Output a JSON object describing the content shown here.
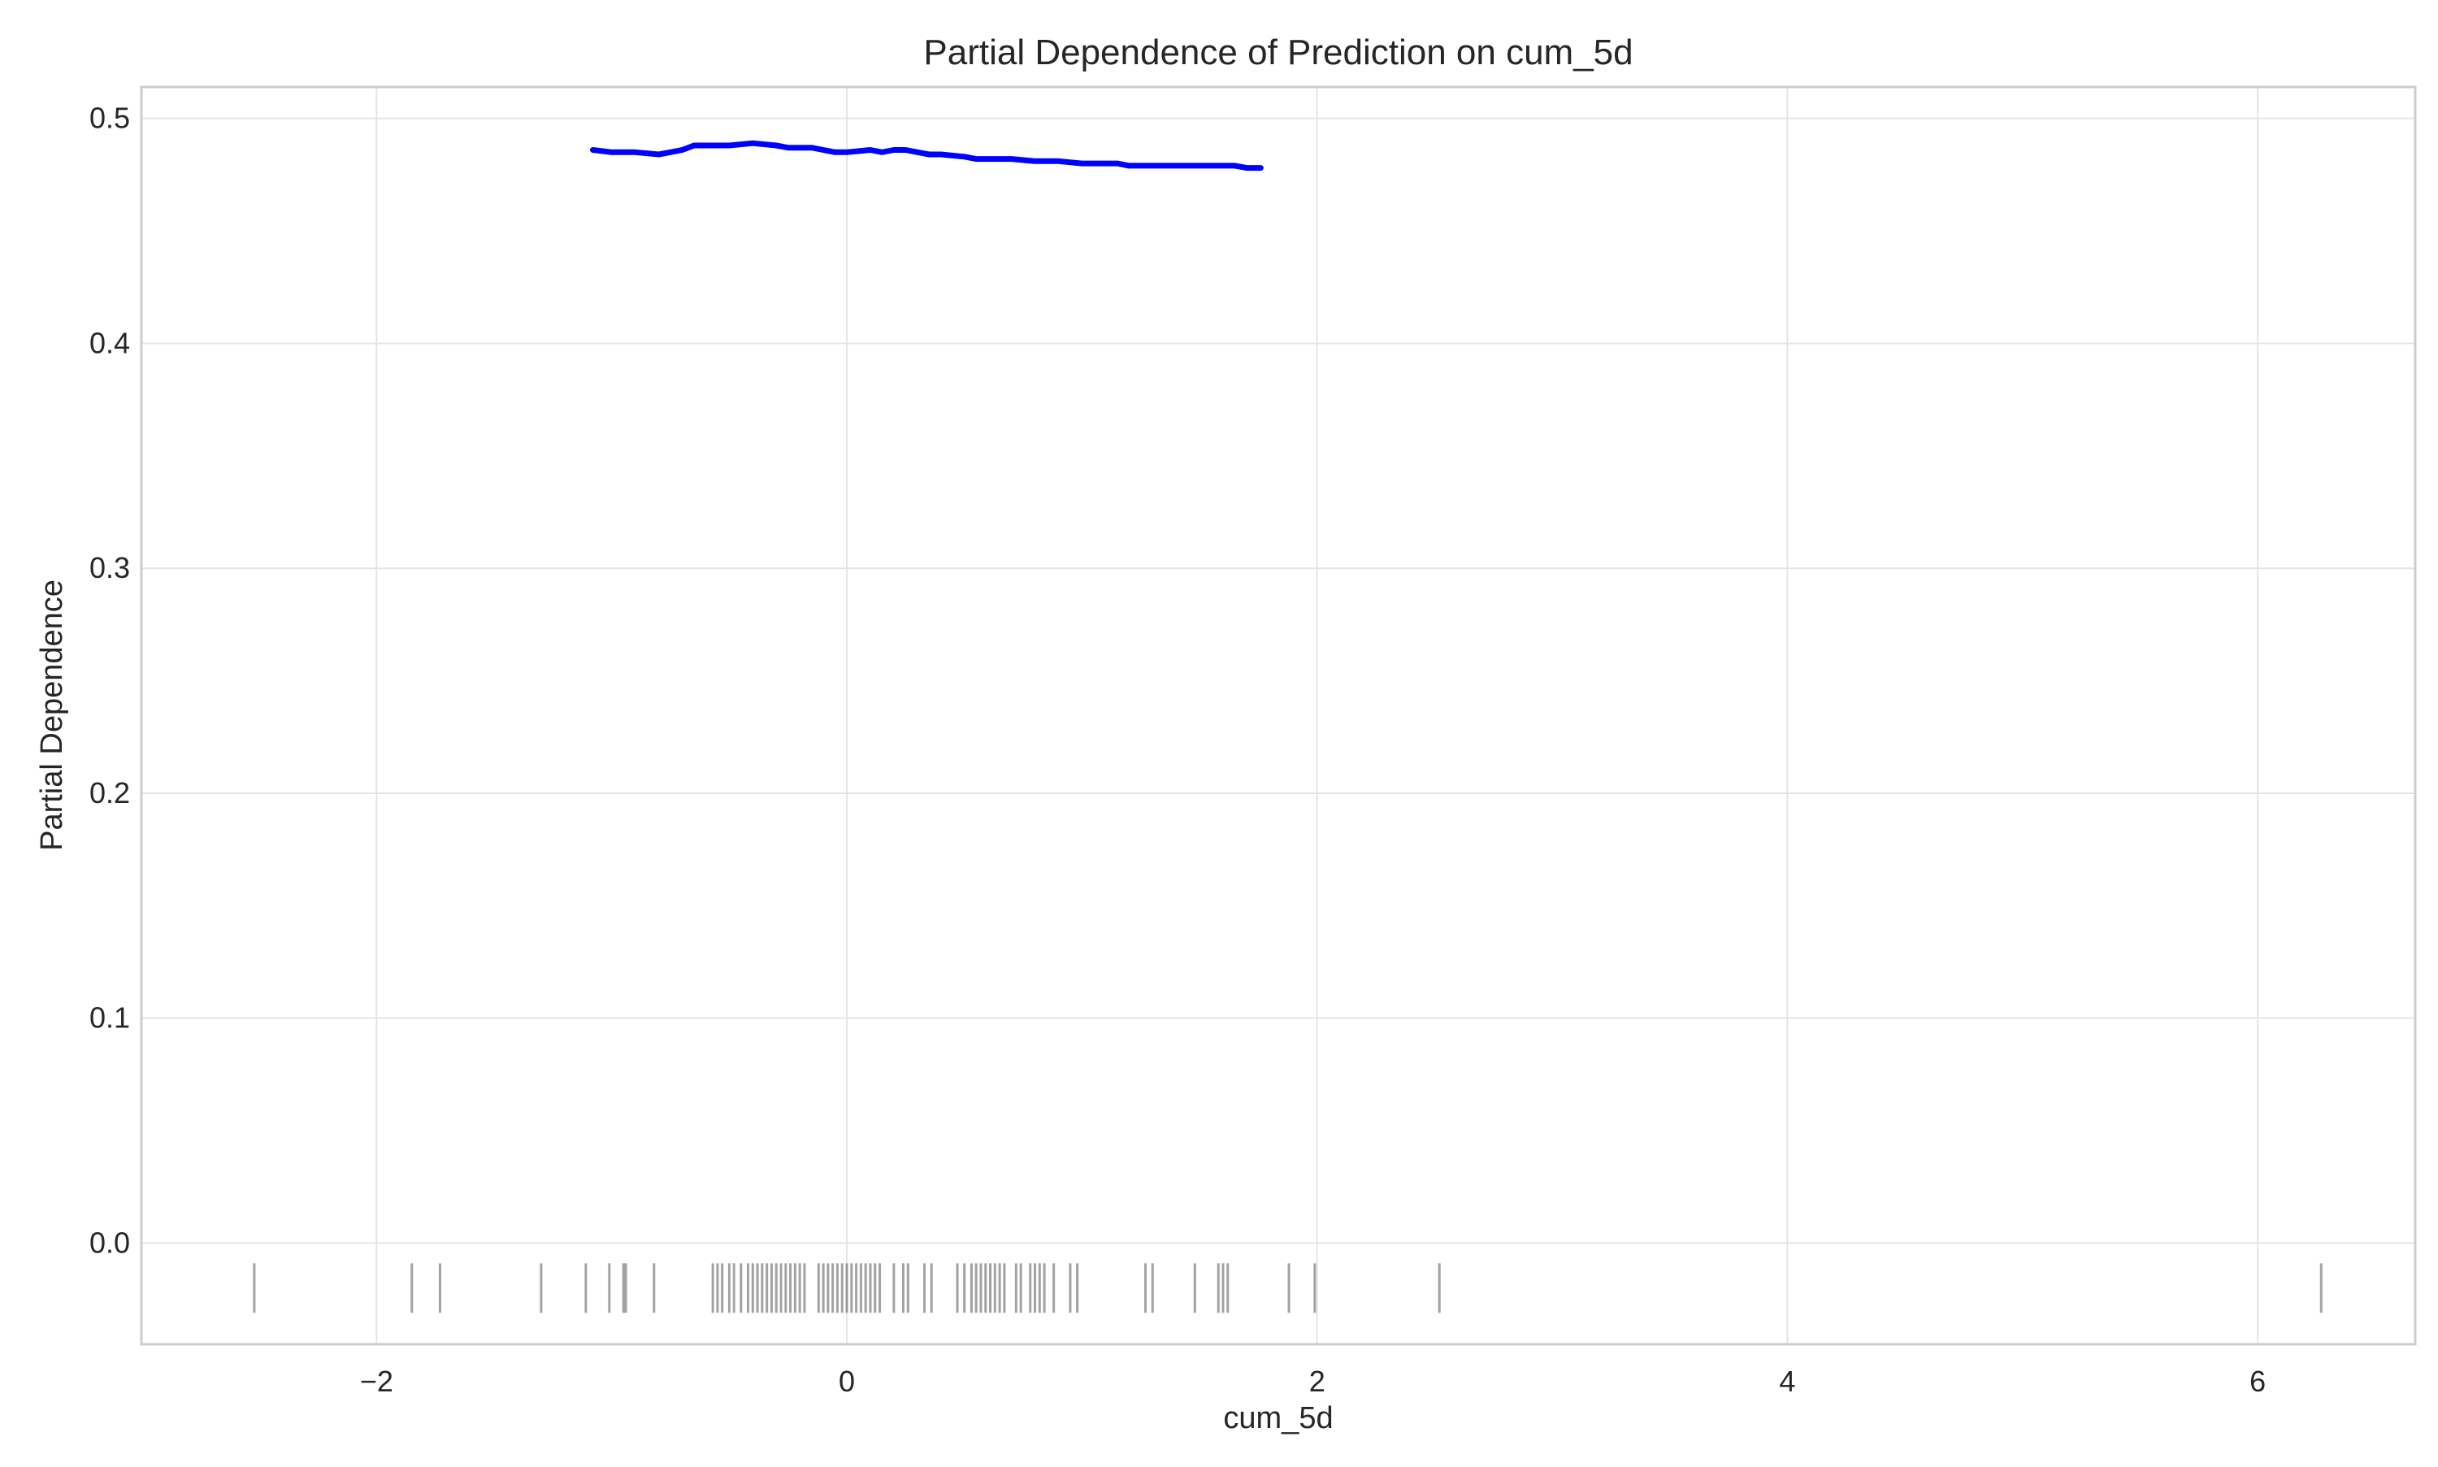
{
  "chart_data": {
    "type": "line",
    "title": "Partial Dependence of Prediction on cum_5d",
    "xlabel": "cum_5d",
    "ylabel": "Partial Dependence",
    "xlim": [
      -3.0,
      6.67
    ],
    "ylim": [
      -0.045,
      0.514
    ],
    "grid": true,
    "x_ticks": [
      -2,
      0,
      2,
      4,
      6
    ],
    "x_tick_labels": [
      "−2",
      "0",
      "2",
      "4",
      "6"
    ],
    "y_ticks": [
      0.0,
      0.1,
      0.2,
      0.3,
      0.4,
      0.5
    ],
    "y_tick_labels": [
      "0.0",
      "0.1",
      "0.2",
      "0.3",
      "0.4",
      "0.5"
    ],
    "series": [
      {
        "color": "#0000ff",
        "x": [
          -1.08,
          -1.0,
          -0.9,
          -0.8,
          -0.75,
          -0.7,
          -0.65,
          -0.5,
          -0.4,
          -0.3,
          -0.25,
          -0.15,
          -0.1,
          -0.05,
          0.0,
          0.1,
          0.15,
          0.2,
          0.25,
          0.3,
          0.35,
          0.4,
          0.5,
          0.55,
          0.6,
          0.7,
          0.8,
          0.9,
          1.0,
          1.15,
          1.2,
          1.3,
          1.5,
          1.65,
          1.7,
          1.76
        ],
        "y": [
          0.486,
          0.485,
          0.485,
          0.484,
          0.485,
          0.486,
          0.488,
          0.488,
          0.489,
          0.488,
          0.487,
          0.487,
          0.486,
          0.485,
          0.485,
          0.486,
          0.485,
          0.486,
          0.486,
          0.485,
          0.484,
          0.484,
          0.483,
          0.482,
          0.482,
          0.482,
          0.481,
          0.481,
          0.48,
          0.48,
          0.479,
          0.479,
          0.479,
          0.479,
          0.478,
          0.478
        ]
      }
    ],
    "rug": {
      "color": "#555555",
      "x": [
        -2.52,
        -1.85,
        -1.73,
        -1.3,
        -1.11,
        -1.01,
        -0.95,
        -0.94,
        -0.82,
        -0.57,
        -0.55,
        -0.53,
        -0.5,
        -0.48,
        -0.45,
        -0.42,
        -0.4,
        -0.38,
        -0.36,
        -0.34,
        -0.32,
        -0.3,
        -0.28,
        -0.26,
        -0.24,
        -0.22,
        -0.2,
        -0.18,
        -0.12,
        -0.1,
        -0.08,
        -0.06,
        -0.04,
        -0.02,
        0.0,
        0.02,
        0.04,
        0.06,
        0.08,
        0.1,
        0.12,
        0.14,
        0.2,
        0.24,
        0.26,
        0.33,
        0.36,
        0.47,
        0.5,
        0.53,
        0.55,
        0.57,
        0.59,
        0.61,
        0.63,
        0.65,
        0.67,
        0.72,
        0.74,
        0.78,
        0.8,
        0.82,
        0.84,
        0.88,
        0.95,
        0.98,
        1.27,
        1.3,
        1.48,
        1.58,
        1.6,
        1.62,
        1.88,
        1.99,
        2.52,
        6.27
      ]
    }
  }
}
